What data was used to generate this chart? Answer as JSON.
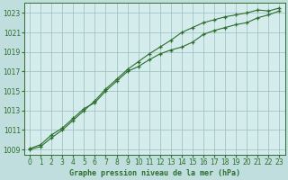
{
  "title": "Graphe pression niveau de la mer (hPa)",
  "bg_color": "#c0dede",
  "plot_bg_color": "#d4ecec",
  "grid_color": "#9abebe",
  "line_color": "#2d6e2d",
  "xlim": [
    -0.5,
    23.5
  ],
  "ylim": [
    1008.5,
    1024.0
  ],
  "xticks": [
    0,
    1,
    2,
    3,
    4,
    5,
    6,
    7,
    8,
    9,
    10,
    11,
    12,
    13,
    14,
    15,
    16,
    17,
    18,
    19,
    20,
    21,
    22,
    23
  ],
  "yticks": [
    1009,
    1011,
    1013,
    1015,
    1017,
    1019,
    1021,
    1023
  ],
  "series1_x": [
    0,
    1,
    2,
    3,
    4,
    5,
    6,
    7,
    8,
    9,
    10,
    11,
    12,
    13,
    14,
    15,
    16,
    17,
    18,
    19,
    20,
    21,
    22,
    23
  ],
  "series1_y": [
    1009.1,
    1009.5,
    1010.5,
    1011.2,
    1012.2,
    1013.2,
    1013.8,
    1015.0,
    1016.0,
    1017.0,
    1017.5,
    1018.2,
    1018.8,
    1019.2,
    1019.5,
    1020.0,
    1020.8,
    1021.2,
    1021.5,
    1021.8,
    1022.0,
    1022.5,
    1022.8,
    1023.2
  ],
  "series2_x": [
    0,
    1,
    2,
    3,
    4,
    5,
    6,
    7,
    8,
    9,
    10,
    11,
    12,
    13,
    14,
    15,
    16,
    17,
    18,
    19,
    20,
    21,
    22,
    23
  ],
  "series2_y": [
    1009.0,
    1009.3,
    1010.2,
    1011.0,
    1012.0,
    1013.0,
    1014.0,
    1015.2,
    1016.2,
    1017.2,
    1018.0,
    1018.8,
    1019.5,
    1020.2,
    1021.0,
    1021.5,
    1022.0,
    1022.3,
    1022.6,
    1022.8,
    1023.0,
    1023.3,
    1023.2,
    1023.5
  ]
}
